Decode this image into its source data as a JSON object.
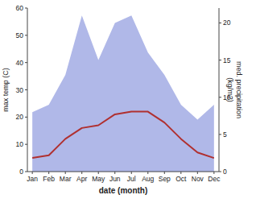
{
  "chart_data": {
    "type": "line",
    "categories": [
      "Jan",
      "Feb",
      "Mar",
      "Apr",
      "May",
      "Jun",
      "Jul",
      "Aug",
      "Sep",
      "Oct",
      "Nov",
      "Dec"
    ],
    "series": [
      {
        "type": "area",
        "axis": "y2",
        "color": "#b0b8e8",
        "values": [
          8,
          9,
          13,
          21,
          15,
          20,
          21,
          16,
          13,
          9,
          7,
          9
        ]
      },
      {
        "type": "line",
        "color": "#b03030",
        "values": [
          5,
          6,
          12,
          16,
          17,
          21,
          22,
          22,
          18,
          12,
          7,
          5
        ]
      }
    ],
    "xlabel": "date (month)",
    "ylabel": "max temp (C)",
    "y2label": "med. precipitation\n(kg/m2)",
    "ylim": [
      0,
      60
    ],
    "yticks": [
      0,
      10,
      20,
      30,
      40,
      50,
      60
    ],
    "y2lim": [
      0,
      22
    ],
    "y2ticks": [
      0,
      5,
      10,
      15,
      20
    ],
    "grid": false
  }
}
